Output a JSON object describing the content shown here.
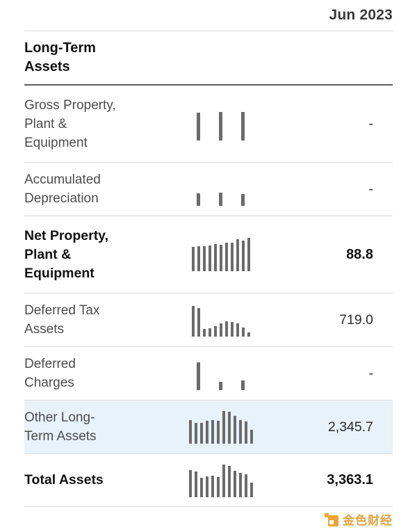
{
  "header": {
    "period": "Jun 2023"
  },
  "rows": [
    {
      "type": "section",
      "name": "long-term-assets",
      "label_lines": [
        "Long-Term",
        "Assets"
      ]
    },
    {
      "type": "data",
      "name": "gross-property-plant-equipment",
      "label_lines": [
        "Gross Property,",
        "Plant &",
        "Equipment"
      ],
      "bold": false,
      "value": "-",
      "highlight": false,
      "spark": {
        "style": "sparse",
        "bars": [
          0.83,
          0.85,
          0.85
        ]
      }
    },
    {
      "type": "data",
      "name": "accumulated-depreciation",
      "label_lines": [
        "Accumulated",
        "Depreciation"
      ],
      "bold": false,
      "value": "-",
      "highlight": false,
      "spark": {
        "style": "sparse",
        "bars": [
          0.38,
          0.4,
          0.36
        ]
      }
    },
    {
      "type": "data",
      "name": "net-property-plant-equipment",
      "label_lines": [
        "Net Property,",
        "Plant &",
        "Equipment"
      ],
      "bold": true,
      "value": "88.8",
      "highlight": false,
      "spark": {
        "style": "dense",
        "bars": [
          0.72,
          0.75,
          0.75,
          0.78,
          0.82,
          0.8,
          0.86,
          0.85,
          0.95,
          0.92,
          1.0
        ]
      }
    },
    {
      "type": "data",
      "name": "deferred-tax-assets",
      "label_lines": [
        "Deferred Tax",
        "Assets"
      ],
      "bold": false,
      "value": "719.0",
      "highlight": false,
      "spark": {
        "style": "dense",
        "bars": [
          0.92,
          0.86,
          0.23,
          0.26,
          0.31,
          0.39,
          0.46,
          0.44,
          0.39,
          0.28,
          0.13
        ]
      }
    },
    {
      "type": "data",
      "name": "deferred-charges",
      "label_lines": [
        "Deferred",
        "Charges"
      ],
      "bold": false,
      "value": "-",
      "highlight": false,
      "spark": {
        "style": "sparse",
        "bars": [
          0.83,
          0.25,
          0.29
        ]
      }
    },
    {
      "type": "data",
      "name": "other-long-term-assets",
      "label_lines": [
        "Other Long-",
        "Term Assets"
      ],
      "bold": false,
      "value": "2,345.7",
      "highlight": true,
      "spark": {
        "style": "dense",
        "bars": [
          0.7,
          0.63,
          0.63,
          0.68,
          0.71,
          0.68,
          0.97,
          0.95,
          0.83,
          0.71,
          0.66,
          0.41
        ]
      }
    },
    {
      "type": "data",
      "name": "total-assets",
      "label_lines": [
        "Total Assets"
      ],
      "bold": true,
      "value": "3,363.1",
      "highlight": false,
      "spark": {
        "style": "dense",
        "bars": [
          0.82,
          0.78,
          0.58,
          0.62,
          0.64,
          0.6,
          0.97,
          0.94,
          0.8,
          0.72,
          0.68,
          0.43
        ]
      }
    }
  ],
  "watermark": {
    "text": "金色财经"
  },
  "colors": {
    "highlight_bg": "#e8f2fb",
    "bar": "#6b6b6b",
    "accent_orange": "#f0a32f",
    "divider": "#dadada",
    "divider_dark": "#5f5f5f"
  }
}
